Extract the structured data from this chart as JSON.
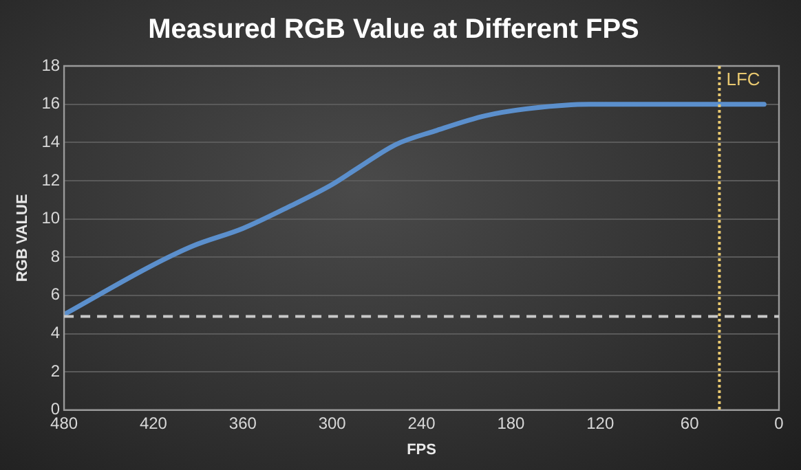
{
  "chart_data": {
    "type": "line",
    "title": "Measured RGB Value at Different FPS",
    "xlabel": "FPS",
    "ylabel": "RGB VALUE",
    "x": [
      480,
      420,
      393,
      360,
      330,
      300,
      282,
      257,
      231,
      197,
      165,
      127,
      86,
      10
    ],
    "series": [
      {
        "color": "#5b8fcc",
        "values": [
          5.0,
          7.6,
          8.6,
          9.5,
          10.6,
          11.8,
          12.7,
          13.9,
          14.6,
          15.4,
          15.8,
          16.0,
          16.0,
          16.0
        ]
      }
    ],
    "xlim": [
      480,
      0
    ],
    "xticks": [
      480,
      420,
      360,
      300,
      240,
      180,
      120,
      60,
      0
    ],
    "ylim": [
      0,
      18
    ],
    "yticks": [
      0,
      2,
      4,
      6,
      8,
      10,
      12,
      14,
      16,
      18
    ],
    "ref_lines": [
      {
        "axis": "y",
        "value": 4.9,
        "color": "#c8c8c8",
        "line_style": "dashed"
      },
      {
        "axis": "x",
        "value": 40,
        "label": "LFC",
        "color": "#e8c870",
        "line_style": "dotted"
      }
    ],
    "grid": "y",
    "legend": false,
    "marker": "none",
    "line_style": "solid"
  }
}
